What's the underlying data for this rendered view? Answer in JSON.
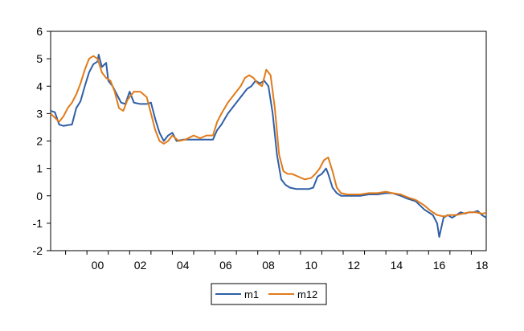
{
  "chart_data": {
    "type": "line",
    "title": "",
    "xlabel": "",
    "ylabel": "",
    "xlim": [
      1998.3,
      2018.7
    ],
    "ylim": [
      -2,
      6
    ],
    "y_ticks": [
      -2,
      -1,
      0,
      1,
      2,
      3,
      4,
      5,
      6
    ],
    "x_ticks": [
      {
        "value": 2000,
        "label": "00"
      },
      {
        "value": 2002,
        "label": "02"
      },
      {
        "value": 2004,
        "label": "04"
      },
      {
        "value": 2006,
        "label": "06"
      },
      {
        "value": 2008,
        "label": "08"
      },
      {
        "value": 2010,
        "label": "10"
      },
      {
        "value": 2012,
        "label": "12"
      },
      {
        "value": 2014,
        "label": "14"
      },
      {
        "value": 2016,
        "label": "16"
      },
      {
        "value": 2018,
        "label": "18"
      }
    ],
    "grid": false,
    "legend": "bottom-center",
    "series": [
      {
        "name": "m1",
        "color": "#2f5fa7",
        "points": [
          [
            1998.3,
            3.1
          ],
          [
            1998.5,
            3.05
          ],
          [
            1998.7,
            2.6
          ],
          [
            1998.9,
            2.55
          ],
          [
            1999.1,
            2.58
          ],
          [
            1999.3,
            2.6
          ],
          [
            1999.5,
            3.2
          ],
          [
            1999.7,
            3.45
          ],
          [
            1999.9,
            4.0
          ],
          [
            2000.1,
            4.5
          ],
          [
            2000.3,
            4.8
          ],
          [
            2000.5,
            4.9
          ],
          [
            2000.55,
            5.15
          ],
          [
            2000.7,
            4.7
          ],
          [
            2000.9,
            4.85
          ],
          [
            2001.0,
            4.2
          ],
          [
            2001.2,
            4.0
          ],
          [
            2001.4,
            3.7
          ],
          [
            2001.6,
            3.4
          ],
          [
            2001.8,
            3.35
          ],
          [
            2002.0,
            3.8
          ],
          [
            2002.2,
            3.4
          ],
          [
            2002.5,
            3.35
          ],
          [
            2002.8,
            3.35
          ],
          [
            2003.0,
            3.4
          ],
          [
            2003.2,
            2.8
          ],
          [
            2003.4,
            2.3
          ],
          [
            2003.6,
            2.0
          ],
          [
            2003.8,
            2.2
          ],
          [
            2004.0,
            2.3
          ],
          [
            2004.2,
            2.0
          ],
          [
            2004.5,
            2.05
          ],
          [
            2005.0,
            2.05
          ],
          [
            2005.5,
            2.05
          ],
          [
            2005.9,
            2.05
          ],
          [
            2006.1,
            2.4
          ],
          [
            2006.3,
            2.6
          ],
          [
            2006.6,
            3.0
          ],
          [
            2006.9,
            3.3
          ],
          [
            2007.2,
            3.6
          ],
          [
            2007.5,
            3.9
          ],
          [
            2007.7,
            4.0
          ],
          [
            2007.9,
            4.2
          ],
          [
            2008.1,
            4.1
          ],
          [
            2008.3,
            4.2
          ],
          [
            2008.5,
            4.0
          ],
          [
            2008.7,
            3.0
          ],
          [
            2008.9,
            1.5
          ],
          [
            2009.1,
            0.6
          ],
          [
            2009.3,
            0.4
          ],
          [
            2009.5,
            0.3
          ],
          [
            2009.8,
            0.25
          ],
          [
            2010.1,
            0.25
          ],
          [
            2010.4,
            0.25
          ],
          [
            2010.6,
            0.3
          ],
          [
            2010.8,
            0.7
          ],
          [
            2011.0,
            0.8
          ],
          [
            2011.2,
            1.0
          ],
          [
            2011.3,
            0.8
          ],
          [
            2011.5,
            0.3
          ],
          [
            2011.7,
            0.1
          ],
          [
            2011.9,
            0.0
          ],
          [
            2012.2,
            0.0
          ],
          [
            2012.5,
            0.0
          ],
          [
            2012.8,
            0.0
          ],
          [
            2013.2,
            0.05
          ],
          [
            2013.6,
            0.05
          ],
          [
            2014.0,
            0.1
          ],
          [
            2014.3,
            0.1
          ],
          [
            2014.7,
            0.0
          ],
          [
            2015.0,
            -0.1
          ],
          [
            2015.4,
            -0.2
          ],
          [
            2015.8,
            -0.5
          ],
          [
            2016.0,
            -0.6
          ],
          [
            2016.2,
            -0.7
          ],
          [
            2016.4,
            -1.0
          ],
          [
            2016.5,
            -1.5
          ],
          [
            2016.7,
            -0.8
          ],
          [
            2016.9,
            -0.7
          ],
          [
            2017.1,
            -0.8
          ],
          [
            2017.3,
            -0.7
          ],
          [
            2017.5,
            -0.6
          ],
          [
            2017.7,
            -0.65
          ],
          [
            2017.9,
            -0.6
          ],
          [
            2018.1,
            -0.6
          ],
          [
            2018.3,
            -0.55
          ],
          [
            2018.5,
            -0.7
          ],
          [
            2018.7,
            -0.8
          ]
        ]
      },
      {
        "name": "m12",
        "color": "#e07b1a",
        "points": [
          [
            1998.3,
            3.0
          ],
          [
            1998.5,
            2.85
          ],
          [
            1998.7,
            2.7
          ],
          [
            1998.9,
            2.9
          ],
          [
            1999.1,
            3.2
          ],
          [
            1999.3,
            3.4
          ],
          [
            1999.5,
            3.7
          ],
          [
            1999.7,
            4.1
          ],
          [
            1999.9,
            4.6
          ],
          [
            2000.1,
            5.0
          ],
          [
            2000.3,
            5.1
          ],
          [
            2000.5,
            5.0
          ],
          [
            2000.7,
            4.5
          ],
          [
            2000.9,
            4.3
          ],
          [
            2001.1,
            4.2
          ],
          [
            2001.3,
            3.8
          ],
          [
            2001.5,
            3.2
          ],
          [
            2001.7,
            3.1
          ],
          [
            2001.9,
            3.5
          ],
          [
            2002.2,
            3.8
          ],
          [
            2002.5,
            3.8
          ],
          [
            2002.8,
            3.6
          ],
          [
            2003.0,
            3.0
          ],
          [
            2003.2,
            2.4
          ],
          [
            2003.4,
            2.0
          ],
          [
            2003.6,
            1.9
          ],
          [
            2003.8,
            2.0
          ],
          [
            2004.0,
            2.2
          ],
          [
            2004.3,
            2.0
          ],
          [
            2004.6,
            2.05
          ],
          [
            2005.0,
            2.2
          ],
          [
            2005.3,
            2.1
          ],
          [
            2005.6,
            2.2
          ],
          [
            2005.9,
            2.2
          ],
          [
            2006.1,
            2.7
          ],
          [
            2006.3,
            3.0
          ],
          [
            2006.6,
            3.4
          ],
          [
            2006.9,
            3.7
          ],
          [
            2007.2,
            4.0
          ],
          [
            2007.4,
            4.3
          ],
          [
            2007.6,
            4.4
          ],
          [
            2007.8,
            4.3
          ],
          [
            2008.0,
            4.1
          ],
          [
            2008.2,
            4.0
          ],
          [
            2008.4,
            4.6
          ],
          [
            2008.6,
            4.4
          ],
          [
            2008.8,
            3.2
          ],
          [
            2009.0,
            1.5
          ],
          [
            2009.2,
            0.9
          ],
          [
            2009.4,
            0.8
          ],
          [
            2009.6,
            0.8
          ],
          [
            2009.9,
            0.7
          ],
          [
            2010.2,
            0.6
          ],
          [
            2010.5,
            0.65
          ],
          [
            2010.7,
            0.8
          ],
          [
            2010.9,
            1.0
          ],
          [
            2011.1,
            1.3
          ],
          [
            2011.3,
            1.4
          ],
          [
            2011.5,
            0.9
          ],
          [
            2011.7,
            0.3
          ],
          [
            2011.9,
            0.1
          ],
          [
            2012.2,
            0.05
          ],
          [
            2012.5,
            0.05
          ],
          [
            2012.8,
            0.05
          ],
          [
            2013.2,
            0.1
          ],
          [
            2013.6,
            0.1
          ],
          [
            2014.0,
            0.15
          ],
          [
            2014.3,
            0.1
          ],
          [
            2014.7,
            0.05
          ],
          [
            2015.0,
            -0.05
          ],
          [
            2015.4,
            -0.15
          ],
          [
            2015.8,
            -0.35
          ],
          [
            2016.1,
            -0.55
          ],
          [
            2016.4,
            -0.7
          ],
          [
            2016.7,
            -0.75
          ],
          [
            2017.0,
            -0.7
          ],
          [
            2017.3,
            -0.7
          ],
          [
            2017.6,
            -0.65
          ],
          [
            2017.9,
            -0.6
          ],
          [
            2018.2,
            -0.6
          ],
          [
            2018.5,
            -0.65
          ],
          [
            2018.7,
            -0.62
          ]
        ]
      }
    ]
  }
}
